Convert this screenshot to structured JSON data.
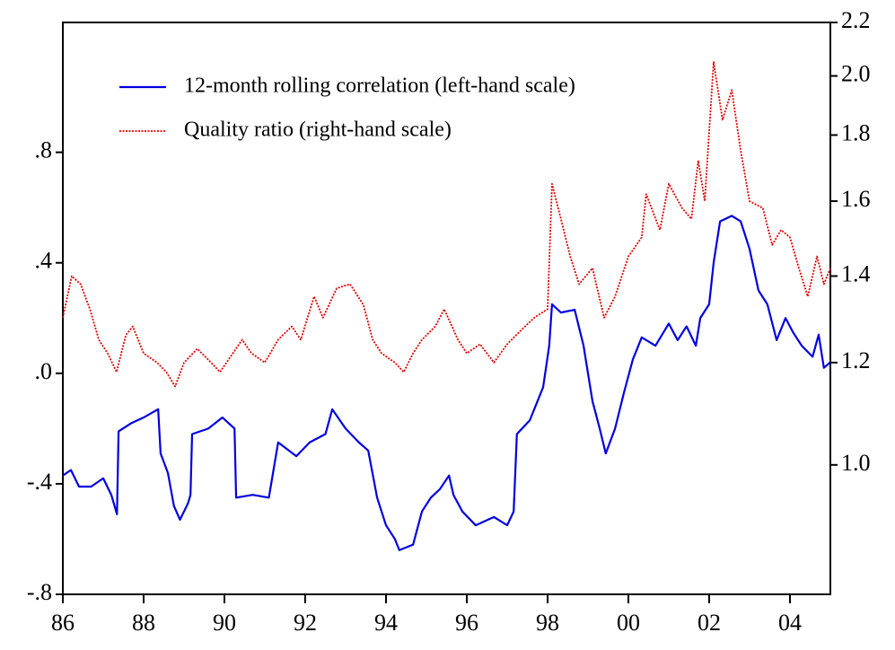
{
  "chart_data": {
    "type": "line",
    "xlim": [
      1986,
      2005
    ],
    "xticks": [
      {
        "value": 1986,
        "label": "86"
      },
      {
        "value": 1988,
        "label": "88"
      },
      {
        "value": 1990,
        "label": "90"
      },
      {
        "value": 1992,
        "label": "92"
      },
      {
        "value": 1994,
        "label": "94"
      },
      {
        "value": 1996,
        "label": "96"
      },
      {
        "value": 1998,
        "label": "98"
      },
      {
        "value": 2000,
        "label": "00"
      },
      {
        "value": 2002,
        "label": "02"
      },
      {
        "value": 2004,
        "label": "04"
      }
    ],
    "ylim": [
      -0.8,
      1.27
    ],
    "yticks": [
      {
        "value": -0.8,
        "label": "-.8"
      },
      {
        "value": -0.4,
        "label": "-.4"
      },
      {
        "value": 0,
        "label": ".0"
      },
      {
        "value": 0.4,
        "label": ".4"
      },
      {
        "value": 0.8,
        "label": ".8"
      }
    ],
    "y2lim": [
      0.794,
      2.2
    ],
    "y2log": true,
    "y2ticks": [
      {
        "value": 1,
        "label": "1.0"
      },
      1.2,
      1.4,
      1.6,
      1.8,
      {
        "value": 2,
        "label": "2.0"
      },
      2.2
    ],
    "legend": "top-left",
    "series": [
      {
        "name": "12-month rolling correlation (left-hand scale)",
        "color": "#0000e0",
        "dash": "solid",
        "x": [
          1986.0,
          1986.2,
          1986.4,
          1986.7,
          1987.0,
          1987.2,
          1987.34,
          1987.38,
          1987.7,
          1988.0,
          1988.36,
          1988.42,
          1988.6,
          1988.75,
          1988.9,
          1989.1,
          1989.16,
          1989.2,
          1989.6,
          1989.95,
          1990.25,
          1990.29,
          1990.7,
          1991.1,
          1991.33,
          1991.78,
          1992.11,
          1992.5,
          1992.67,
          1993.0,
          1993.33,
          1993.56,
          1993.78,
          1994.0,
          1994.22,
          1994.33,
          1994.67,
          1994.89,
          1995.11,
          1995.33,
          1995.56,
          1995.67,
          1995.89,
          1996.22,
          1996.67,
          1997.0,
          1997.16,
          1997.24,
          1997.56,
          1997.89,
          1998.04,
          1998.11,
          1998.33,
          1998.67,
          1998.89,
          1999.11,
          1999.29,
          1999.44,
          1999.67,
          1999.89,
          2000.11,
          2000.33,
          2000.67,
          2001.0,
          2001.22,
          2001.44,
          2001.67,
          2001.78,
          2002.0,
          2002.11,
          2002.27,
          2002.56,
          2002.78,
          2003.0,
          2003.22,
          2003.44,
          2003.67,
          2003.89,
          2004.07,
          2004.29,
          2004.56,
          2004.71,
          2004.84,
          2005.0
        ],
        "values": [
          -0.37,
          -0.35,
          -0.41,
          -0.41,
          -0.38,
          -0.44,
          -0.51,
          -0.21,
          -0.18,
          -0.16,
          -0.13,
          -0.29,
          -0.36,
          -0.48,
          -0.53,
          -0.47,
          -0.44,
          -0.22,
          -0.2,
          -0.16,
          -0.2,
          -0.45,
          -0.44,
          -0.45,
          -0.25,
          -0.3,
          -0.25,
          -0.22,
          -0.13,
          -0.2,
          -0.25,
          -0.28,
          -0.45,
          -0.55,
          -0.6,
          -0.64,
          -0.62,
          -0.5,
          -0.45,
          -0.42,
          -0.37,
          -0.44,
          -0.5,
          -0.55,
          -0.52,
          -0.55,
          -0.5,
          -0.22,
          -0.17,
          -0.05,
          0.1,
          0.25,
          0.22,
          0.23,
          0.1,
          -0.1,
          -0.2,
          -0.29,
          -0.2,
          -0.07,
          0.05,
          0.13,
          0.1,
          0.18,
          0.12,
          0.17,
          0.1,
          0.2,
          0.25,
          0.4,
          0.55,
          0.57,
          0.55,
          0.45,
          0.3,
          0.25,
          0.12,
          0.2,
          0.15,
          0.1,
          0.06,
          0.14,
          0.02,
          0.04
        ]
      },
      {
        "name": "Quality ratio (right-hand scale)",
        "color": "#e00000",
        "dash": "dotted",
        "axis": "y2",
        "x": [
          1986.0,
          1986.22,
          1986.44,
          1986.67,
          1986.89,
          1987.11,
          1987.33,
          1987.56,
          1987.73,
          1988.0,
          1988.33,
          1988.56,
          1988.78,
          1989.0,
          1989.33,
          1989.67,
          1989.89,
          1990.44,
          1990.67,
          1991.0,
          1991.33,
          1991.67,
          1991.89,
          1992.22,
          1992.44,
          1992.78,
          1993.11,
          1993.44,
          1993.67,
          1993.89,
          1994.22,
          1994.44,
          1994.67,
          1994.89,
          1995.22,
          1995.44,
          1995.78,
          1996.0,
          1996.33,
          1996.67,
          1997.0,
          1997.33,
          1997.67,
          1998.0,
          1998.11,
          1998.33,
          1998.56,
          1998.78,
          1999.11,
          1999.4,
          1999.67,
          2000.0,
          2000.33,
          2000.44,
          2000.78,
          2001.0,
          2001.33,
          2001.56,
          2001.73,
          2001.89,
          2002.11,
          2002.33,
          2002.56,
          2002.78,
          2003.0,
          2003.33,
          2003.56,
          2003.78,
          2004.0,
          2004.22,
          2004.44,
          2004.67,
          2004.84,
          2005.0
        ],
        "values": [
          1.3,
          1.4,
          1.38,
          1.32,
          1.25,
          1.22,
          1.18,
          1.26,
          1.28,
          1.22,
          1.2,
          1.18,
          1.15,
          1.2,
          1.23,
          1.2,
          1.18,
          1.25,
          1.22,
          1.2,
          1.25,
          1.28,
          1.25,
          1.35,
          1.3,
          1.37,
          1.38,
          1.33,
          1.25,
          1.22,
          1.2,
          1.18,
          1.22,
          1.25,
          1.28,
          1.32,
          1.25,
          1.22,
          1.24,
          1.2,
          1.24,
          1.27,
          1.3,
          1.32,
          1.65,
          1.55,
          1.45,
          1.38,
          1.42,
          1.3,
          1.35,
          1.45,
          1.5,
          1.62,
          1.52,
          1.65,
          1.58,
          1.55,
          1.72,
          1.6,
          2.05,
          1.85,
          1.95,
          1.75,
          1.6,
          1.58,
          1.48,
          1.52,
          1.5,
          1.42,
          1.35,
          1.45,
          1.38,
          1.42
        ]
      }
    ]
  }
}
